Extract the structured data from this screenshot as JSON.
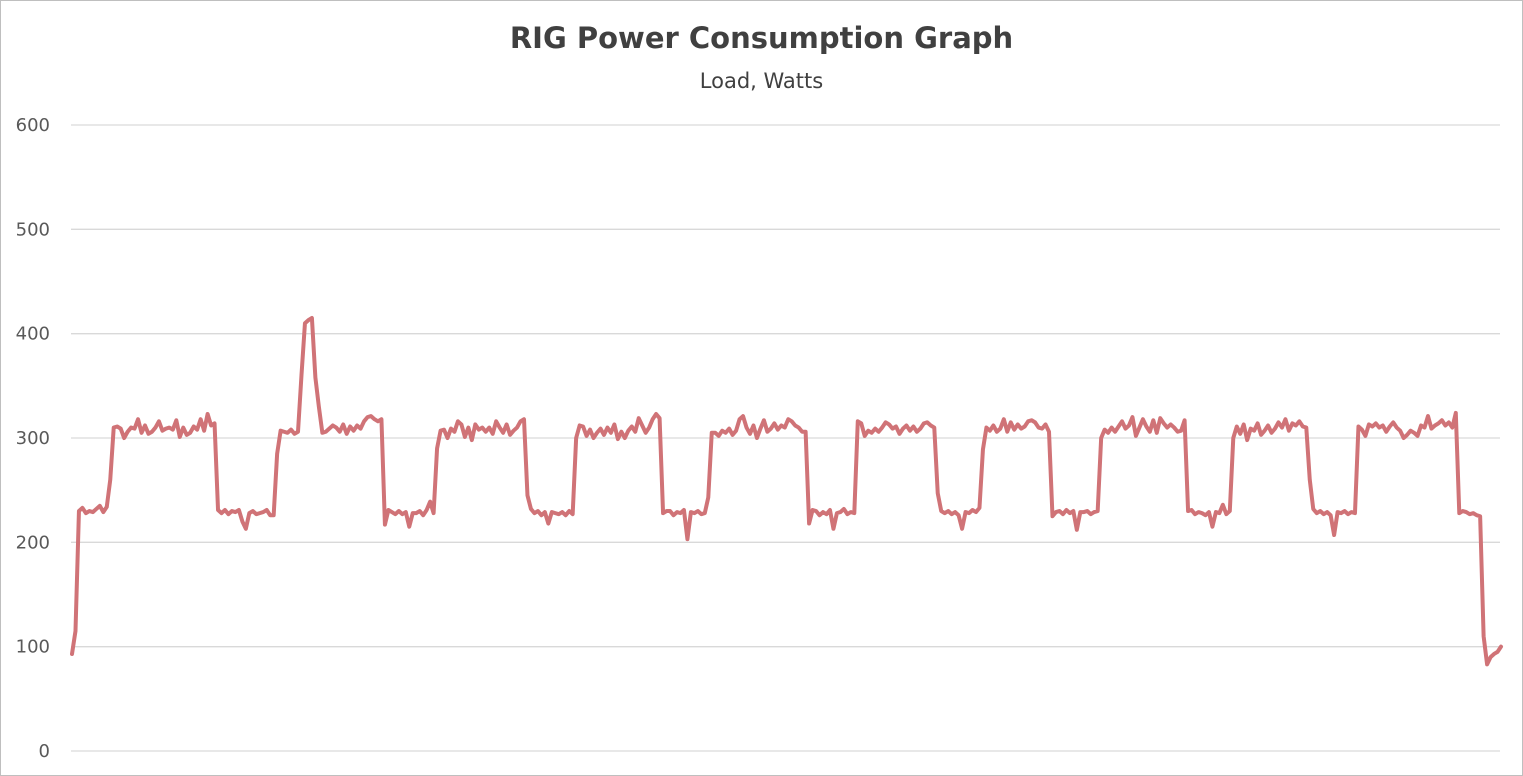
{
  "chart_data": {
    "type": "line",
    "title": "RIG Power Consumption Graph",
    "subtitle": "Load, Watts",
    "xlabel": "",
    "ylabel": "",
    "ylim": [
      0,
      600
    ],
    "yticks": [
      "0",
      "100",
      "200",
      "300",
      "400",
      "500",
      "600"
    ],
    "grid": true,
    "legend": "none",
    "colors": {
      "line": "#d07377",
      "grid": "#d9d9d9",
      "text": "#404040",
      "tick": "#595959"
    },
    "series": [
      {
        "values": [
          93,
          115,
          230,
          233,
          228,
          230,
          229,
          232,
          235,
          229,
          234,
          260,
          310,
          311,
          309,
          300,
          306,
          310,
          309,
          318,
          305,
          312,
          304,
          306,
          310,
          316,
          307,
          309,
          310,
          308,
          317,
          301,
          310,
          303,
          305,
          311,
          308,
          318,
          307,
          323,
          312,
          314,
          231,
          228,
          231,
          227,
          230,
          229,
          231,
          220,
          213,
          228,
          230,
          227,
          228,
          229,
          231,
          226,
          226,
          285,
          307,
          306,
          305,
          308,
          304,
          306,
          360,
          410,
          413,
          415,
          358,
          330,
          305,
          306,
          309,
          312,
          310,
          306,
          313,
          304,
          311,
          307,
          312,
          309,
          316,
          320,
          321,
          318,
          316,
          318,
          217,
          231,
          229,
          227,
          230,
          227,
          229,
          215,
          228,
          228,
          230,
          226,
          231,
          239,
          228,
          290,
          307,
          308,
          300,
          309,
          306,
          316,
          313,
          301,
          310,
          298,
          313,
          308,
          310,
          306,
          310,
          304,
          316,
          310,
          305,
          313,
          303,
          307,
          310,
          316,
          318,
          245,
          232,
          228,
          230,
          226,
          229,
          218,
          229,
          228,
          227,
          229,
          226,
          230,
          227,
          300,
          312,
          311,
          302,
          308,
          300,
          305,
          309,
          303,
          310,
          305,
          313,
          299,
          306,
          300,
          307,
          311,
          306,
          319,
          312,
          305,
          310,
          318,
          323,
          319,
          228,
          230,
          230,
          226,
          229,
          228,
          231,
          203,
          229,
          228,
          230,
          227,
          228,
          243,
          305,
          305,
          302,
          307,
          305,
          309,
          303,
          307,
          318,
          321,
          310,
          304,
          312,
          300,
          309,
          317,
          306,
          309,
          314,
          308,
          312,
          310,
          318,
          316,
          312,
          310,
          306,
          306,
          218,
          231,
          230,
          226,
          229,
          227,
          231,
          213,
          228,
          229,
          232,
          227,
          229,
          228,
          316,
          314,
          302,
          307,
          305,
          309,
          306,
          310,
          315,
          313,
          309,
          311,
          304,
          309,
          312,
          307,
          311,
          306,
          309,
          314,
          315,
          312,
          310,
          247,
          230,
          228,
          230,
          227,
          229,
          226,
          213,
          229,
          228,
          231,
          229,
          233,
          289,
          310,
          307,
          312,
          306,
          309,
          318,
          306,
          315,
          308,
          313,
          309,
          311,
          316,
          317,
          315,
          310,
          309,
          313,
          306,
          225,
          229,
          230,
          227,
          231,
          228,
          230,
          212,
          229,
          229,
          230,
          227,
          229,
          230,
          300,
          308,
          305,
          310,
          306,
          311,
          316,
          309,
          312,
          320,
          302,
          310,
          318,
          311,
          306,
          317,
          305,
          319,
          314,
          310,
          313,
          310,
          306,
          307,
          317,
          230,
          231,
          227,
          229,
          228,
          226,
          229,
          215,
          229,
          228,
          236,
          227,
          230,
          300,
          311,
          304,
          313,
          298,
          309,
          307,
          314,
          303,
          307,
          312,
          305,
          309,
          315,
          310,
          318,
          307,
          314,
          312,
          316,
          311,
          310,
          260,
          232,
          228,
          230,
          227,
          229,
          226,
          207,
          229,
          228,
          230,
          227,
          229,
          228,
          311,
          308,
          302,
          313,
          311,
          314,
          310,
          312,
          306,
          311,
          315,
          310,
          307,
          300,
          303,
          307,
          305,
          302,
          312,
          310,
          321,
          309,
          312,
          314,
          317,
          312,
          315,
          310,
          324,
          228,
          230,
          229,
          227,
          228,
          226,
          225,
          110,
          83,
          90,
          93,
          95,
          100
        ]
      }
    ]
  }
}
